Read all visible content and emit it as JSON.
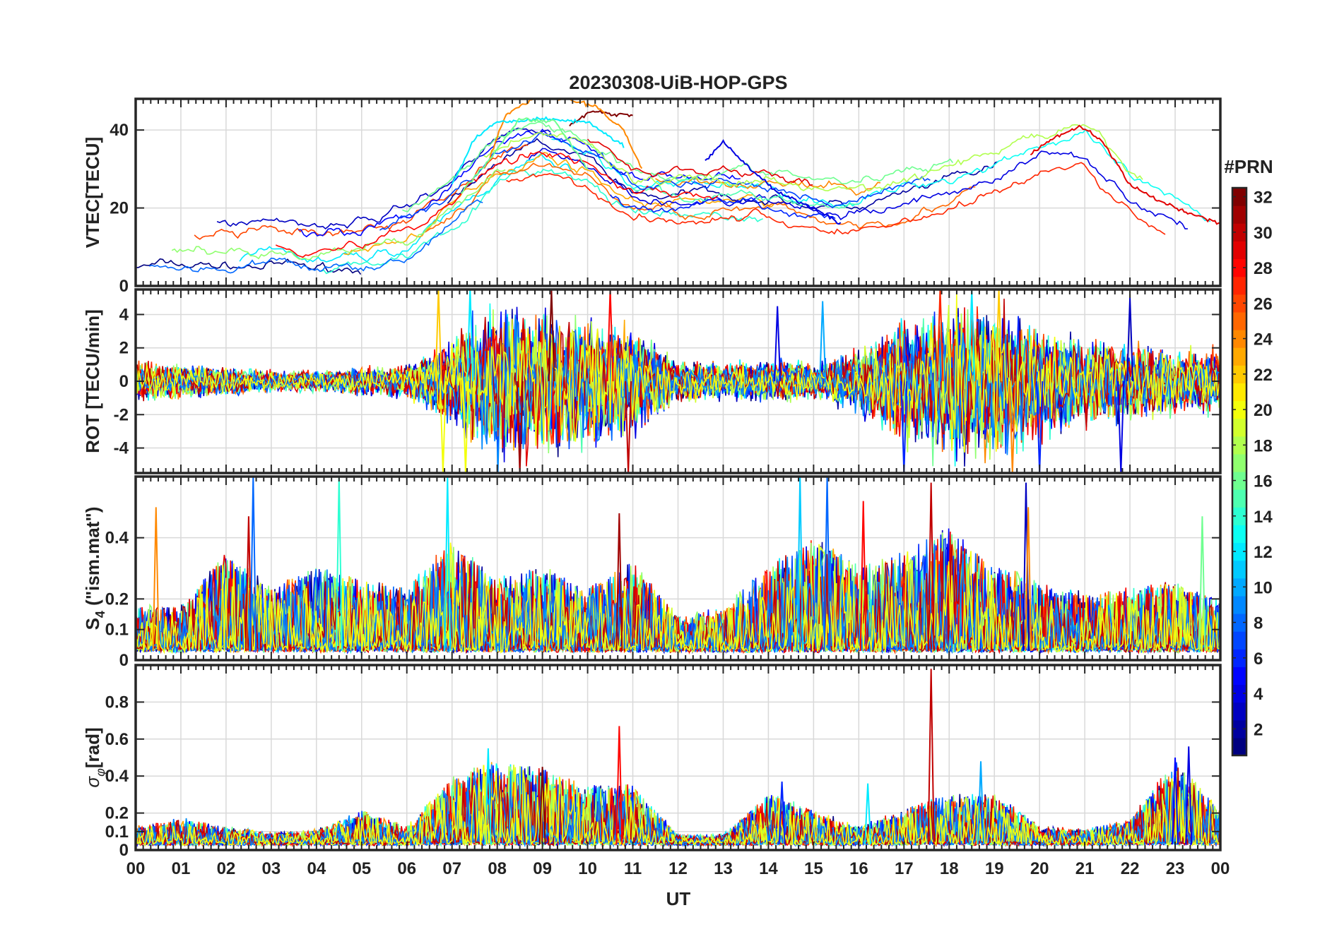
{
  "chart_data": {
    "type": "line",
    "title": "20230308-UiB-HOP-GPS",
    "xlabel": "UT",
    "x_ticks": [
      "00",
      "01",
      "02",
      "03",
      "04",
      "05",
      "06",
      "07",
      "08",
      "09",
      "10",
      "11",
      "12",
      "13",
      "14",
      "15",
      "16",
      "17",
      "18",
      "19",
      "20",
      "21",
      "22",
      "23",
      "00"
    ],
    "xlim_hours": [
      0,
      24
    ],
    "grid": true,
    "colorbar": {
      "label": "#PRN",
      "range": [
        1,
        32
      ],
      "ticks": [
        "2",
        "4",
        "6",
        "8",
        "10",
        "12",
        "14",
        "16",
        "18",
        "20",
        "22",
        "24",
        "26",
        "28",
        "30",
        "32"
      ],
      "colormap": "jet",
      "placement": "right"
    },
    "panels": [
      {
        "id": "vtec",
        "ylabel": "VTEC[TECU]",
        "ylim": [
          0,
          48
        ],
        "yticks": [
          "0",
          "20",
          "40"
        ],
        "ytick_values": [
          0,
          20,
          40
        ],
        "envelope_hours": [
          0,
          1,
          2,
          3,
          4,
          5,
          6,
          7,
          8,
          9,
          10,
          11,
          12,
          13,
          14,
          15,
          16,
          17,
          18,
          19,
          20,
          21,
          22,
          23,
          24
        ],
        "envelope_mean": [
          11,
          11,
          11,
          11,
          10,
          11,
          14,
          22,
          32,
          36,
          32,
          24,
          23,
          24,
          23,
          21,
          20,
          23,
          26,
          30,
          35,
          36,
          25,
          18,
          14
        ],
        "spread": 5,
        "series": [
          {
            "prn": 32,
            "x": [
              9.6,
              10.1,
              10.6,
              11.0
            ],
            "y": [
              41,
              45,
              44,
              44
            ]
          },
          {
            "prn": 24,
            "x": [
              7.8,
              8.2,
              8.8,
              9.5,
              10.2,
              10.8,
              11.2
            ],
            "y": [
              32,
              44,
              48,
              48,
              46,
              40,
              30
            ]
          },
          {
            "prn": 12,
            "x": [
              7.0,
              7.5,
              8.0,
              9.0,
              10.0,
              10.8
            ],
            "y": [
              26,
              38,
              42,
              43,
              42,
              36
            ]
          },
          {
            "prn": 16,
            "x": [
              7.2,
              7.8,
              8.5,
              9.3,
              10.0
            ],
            "y": [
              24,
              32,
              43,
              42,
              30
            ]
          },
          {
            "prn": 29,
            "x": [
              19.8,
              20.3,
              20.9,
              21.4,
              22.0,
              22.6,
              23.2,
              24.0
            ],
            "y": [
              34,
              38,
              41,
              37,
              26,
              22,
              19,
              16
            ]
          },
          {
            "prn": 4,
            "x": [
              12.6,
              13.0,
              13.6,
              14.2,
              15.0,
              15.6
            ],
            "y": [
              32,
              37,
              30,
              24,
              20,
              16
            ]
          }
        ]
      },
      {
        "id": "rot",
        "ylabel": "ROT [TECU/min]",
        "ylim": [
          -5.5,
          5.5
        ],
        "yticks": [
          "-4",
          "-2",
          "0",
          "2",
          "4"
        ],
        "ytick_values": [
          -4,
          -2,
          0,
          2,
          4
        ],
        "envelope_hours": [
          0,
          1,
          2,
          3,
          4,
          5,
          6,
          7,
          8,
          9,
          10,
          11,
          12,
          13,
          14,
          15,
          16,
          17,
          18,
          19,
          20,
          21,
          22,
          23,
          24
        ],
        "envelope_amp": [
          1.2,
          1.0,
          0.8,
          0.6,
          0.6,
          0.8,
          0.9,
          2.5,
          4.5,
          4.0,
          3.5,
          3.0,
          1.2,
          1.0,
          1.2,
          1.0,
          1.8,
          3.5,
          4.5,
          4.5,
          3.2,
          2.5,
          2.2,
          1.8,
          1.8
        ],
        "spikes": [
          {
            "prn": 22,
            "x": 6.7,
            "y": 5.5
          },
          {
            "prn": 20,
            "x": 6.8,
            "y": -5.5
          },
          {
            "prn": 20,
            "x": 7.3,
            "y": -5.5
          },
          {
            "prn": 12,
            "x": 7.4,
            "y": 5.5
          },
          {
            "prn": 31,
            "x": 8.5,
            "y": -5.5
          },
          {
            "prn": 32,
            "x": 9.2,
            "y": 5.5
          },
          {
            "prn": 28,
            "x": 10.5,
            "y": 5.5
          },
          {
            "prn": 30,
            "x": 10.9,
            "y": -5.5
          },
          {
            "prn": 4,
            "x": 14.2,
            "y": 4.5
          },
          {
            "prn": 10,
            "x": 15.2,
            "y": 4.8
          },
          {
            "prn": 6,
            "x": 17.0,
            "y": -5.5
          },
          {
            "prn": 27,
            "x": 17.8,
            "y": 5.5
          },
          {
            "prn": 12,
            "x": 18.5,
            "y": 5.5
          },
          {
            "prn": 22,
            "x": 19.1,
            "y": 5.5
          },
          {
            "prn": 24,
            "x": 19.4,
            "y": -5.5
          },
          {
            "prn": 6,
            "x": 20.0,
            "y": -5.5
          },
          {
            "prn": 4,
            "x": 21.8,
            "y": -5.5
          },
          {
            "prn": 3,
            "x": 22.0,
            "y": 5.0
          }
        ]
      },
      {
        "id": "s4",
        "ylabel": "S4 (\"ism.mat\")",
        "ylim": [
          0,
          0.6
        ],
        "yticks": [
          "0",
          "0.1",
          "0.2",
          "0.4"
        ],
        "ytick_values": [
          0,
          0.1,
          0.2,
          0.4
        ],
        "envelope_hours": [
          0,
          1,
          2,
          3,
          4,
          5,
          6,
          7,
          8,
          9,
          10,
          11,
          12,
          13,
          14,
          15,
          16,
          17,
          18,
          19,
          20,
          21,
          22,
          23,
          24
        ],
        "envelope_peak": [
          0.16,
          0.15,
          0.35,
          0.22,
          0.3,
          0.25,
          0.22,
          0.4,
          0.25,
          0.3,
          0.22,
          0.32,
          0.12,
          0.15,
          0.3,
          0.4,
          0.3,
          0.35,
          0.45,
          0.3,
          0.25,
          0.2,
          0.22,
          0.25,
          0.18
        ],
        "spikes": [
          {
            "prn": 24,
            "x": 0.45,
            "y": 0.5
          },
          {
            "prn": 30,
            "x": 2.5,
            "y": 0.47
          },
          {
            "prn": 8,
            "x": 2.6,
            "y": 0.6
          },
          {
            "prn": 14,
            "x": 4.5,
            "y": 0.6
          },
          {
            "prn": 12,
            "x": 6.9,
            "y": 0.6
          },
          {
            "prn": 31,
            "x": 10.7,
            "y": 0.48
          },
          {
            "prn": 11,
            "x": 14.7,
            "y": 0.6
          },
          {
            "prn": 8,
            "x": 15.3,
            "y": 0.6
          },
          {
            "prn": 28,
            "x": 16.1,
            "y": 0.52
          },
          {
            "prn": 30,
            "x": 17.6,
            "y": 0.58
          },
          {
            "prn": 3,
            "x": 19.7,
            "y": 0.58
          },
          {
            "prn": 24,
            "x": 19.75,
            "y": 0.5
          },
          {
            "prn": 16,
            "x": 23.6,
            "y": 0.47
          }
        ]
      },
      {
        "id": "sigma-phi",
        "ylabel": "σφ[rad]",
        "ylim": [
          0,
          1.0
        ],
        "yticks": [
          "0",
          "0.1",
          "0.2",
          "0.4",
          "0.6",
          "0.8"
        ],
        "ytick_values": [
          0,
          0.1,
          0.2,
          0.4,
          0.6,
          0.8
        ],
        "envelope_hours": [
          0,
          1,
          2,
          3,
          4,
          5,
          6,
          7,
          8,
          9,
          10,
          11,
          12,
          13,
          14,
          15,
          16,
          17,
          18,
          19,
          20,
          21,
          22,
          23,
          24
        ],
        "envelope_peak": [
          0.1,
          0.15,
          0.1,
          0.06,
          0.08,
          0.2,
          0.1,
          0.4,
          0.5,
          0.45,
          0.35,
          0.35,
          0.05,
          0.05,
          0.3,
          0.2,
          0.1,
          0.2,
          0.3,
          0.3,
          0.1,
          0.08,
          0.15,
          0.5,
          0.2
        ],
        "spikes": [
          {
            "prn": 30,
            "x": 17.6,
            "y": 0.98
          },
          {
            "prn": 28,
            "x": 10.7,
            "y": 0.67
          },
          {
            "prn": 12,
            "x": 7.8,
            "y": 0.55
          },
          {
            "prn": 20,
            "x": 7.7,
            "y": 0.46
          },
          {
            "prn": 32,
            "x": 9.0,
            "y": 0.45
          },
          {
            "prn": 4,
            "x": 23.3,
            "y": 0.56
          },
          {
            "prn": 5,
            "x": 23.0,
            "y": 0.5
          },
          {
            "prn": 10,
            "x": 18.7,
            "y": 0.48
          },
          {
            "prn": 6,
            "x": 14.3,
            "y": 0.37
          },
          {
            "prn": 12,
            "x": 16.2,
            "y": 0.36
          }
        ]
      }
    ]
  }
}
